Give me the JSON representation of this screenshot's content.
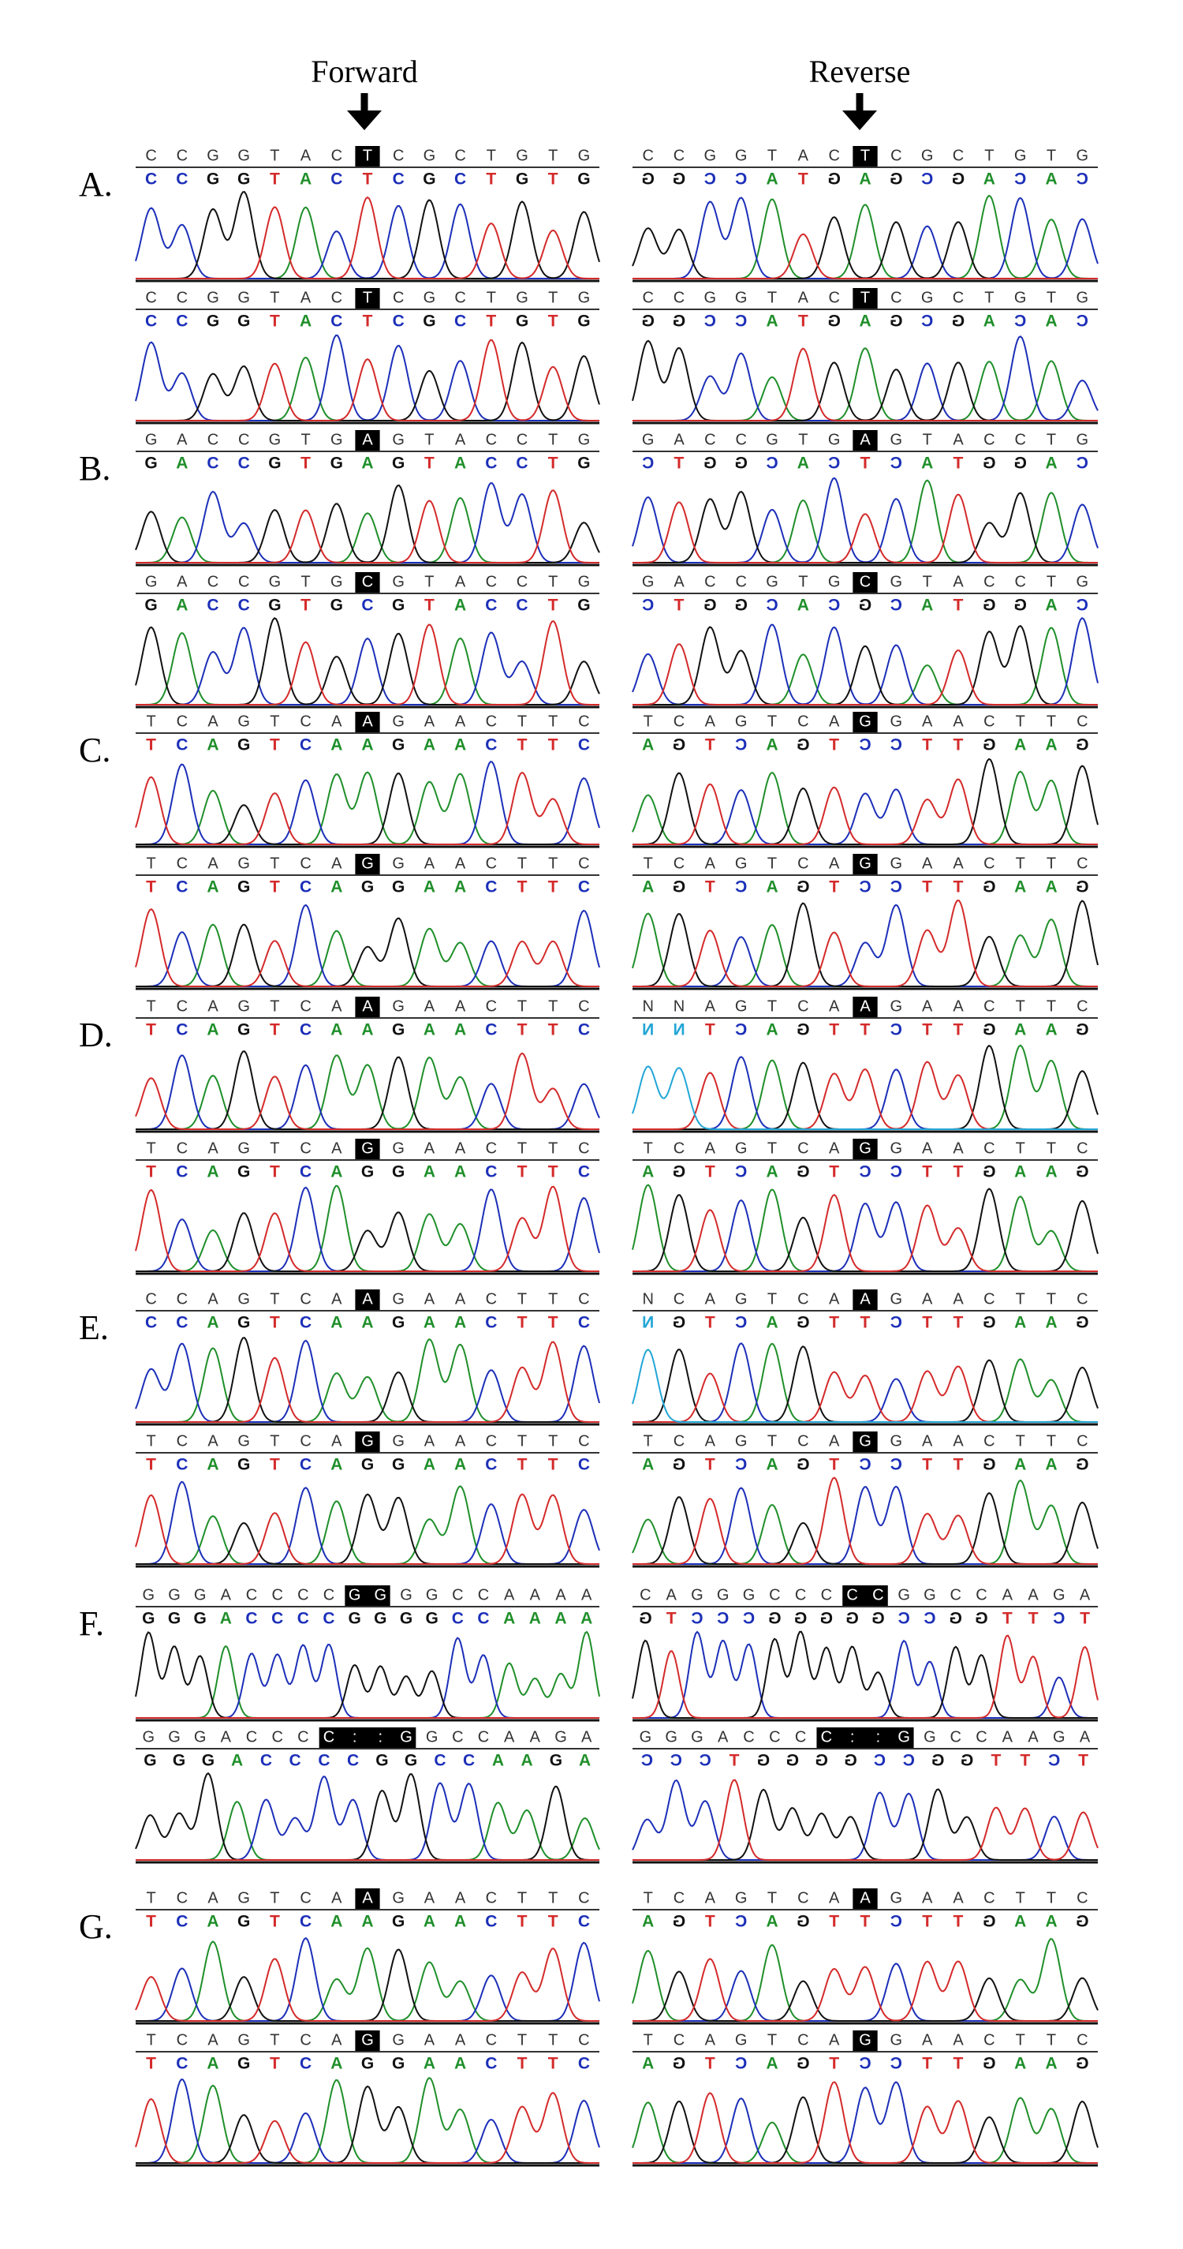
{
  "header": {
    "forward": "Forward",
    "reverse": "Reverse"
  },
  "panels": [
    {
      "label": "A.",
      "rows": [
        {
          "forward": {
            "top": "CCGGTACTCGCTGTG",
            "bottom": "CCGGTACTCGCTGTG",
            "highlight": [
              7,
              7
            ]
          },
          "reverse": {
            "top": "CCGGTACTCGCTGTG",
            "bottom": "GGCCATGAGCGACAC",
            "highlight": [
              7,
              7
            ]
          }
        },
        {
          "forward": {
            "top": "CCGGTACTCGCTGTG",
            "bottom": "CCGGTACTCGCTGTG",
            "highlight": [
              7,
              7
            ]
          },
          "reverse": {
            "top": "CCGGTACTCGCTGTG",
            "bottom": "GGCCATGAGCGACAC",
            "highlight": [
              7,
              7
            ]
          }
        }
      ]
    },
    {
      "label": "B.",
      "rows": [
        {
          "forward": {
            "top": "GACCGTGAGTACCTG",
            "bottom": "GACCGTGAGTACCTG",
            "highlight": [
              7,
              7
            ]
          },
          "reverse": {
            "top": "GACCGTGAGTACCTG",
            "bottom": "CTGGCACTCATGGAC",
            "highlight": [
              7,
              7
            ]
          }
        },
        {
          "forward": {
            "top": "GACCGTGCGTACCTG",
            "bottom": "GACCGTGCGTACCTG",
            "highlight": [
              7,
              7
            ]
          },
          "reverse": {
            "top": "GACCGTGCGTACCTG",
            "bottom": "CTGGCACGCATGGAC",
            "highlight": [
              7,
              7
            ]
          }
        }
      ]
    },
    {
      "label": "C.",
      "rows": [
        {
          "forward": {
            "top": "TCAGTCAAGAACTTC",
            "bottom": "TCAGTCAAGAACTTC",
            "highlight": [
              7,
              7
            ]
          },
          "reverse": {
            "top": "TCAGTCAGGAACTTC",
            "bottom": "AGTCAGTCCTTGAAG",
            "highlight": [
              7,
              7
            ]
          }
        },
        {
          "forward": {
            "top": "TCAGTCAGGAACTTC",
            "bottom": "TCAGTCAGGAACTTC",
            "highlight": [
              7,
              7
            ]
          },
          "reverse": {
            "top": "TCAGTCAGGAACTTC",
            "bottom": "AGTCAGTCCTTGAAG",
            "highlight": [
              7,
              7
            ]
          }
        }
      ]
    },
    {
      "label": "D.",
      "rows": [
        {
          "forward": {
            "top": "TCAGTCAAGAACTTC",
            "bottom": "TCAGTCAAGAACTTC",
            "highlight": [
              7,
              7
            ]
          },
          "reverse": {
            "top": "NNAGTCAAGAACTTC",
            "bottom": "NNTCAGTTCTTGAAG",
            "highlight": [
              7,
              7
            ]
          }
        },
        {
          "forward": {
            "top": "TCAGTCAGGAACTTC",
            "bottom": "TCAGTCAGGAACTTC",
            "highlight": [
              7,
              7
            ]
          },
          "reverse": {
            "top": "TCAGTCAGGAACTTC",
            "bottom": "AGTCAGTCCTTGAAG",
            "highlight": [
              7,
              7
            ]
          }
        }
      ]
    },
    {
      "label": "E.",
      "rows": [
        {
          "forward": {
            "top": "CCAGTCAAGAACTTC",
            "bottom": "CCAGTCAAGAACTTC",
            "highlight": [
              7,
              7
            ]
          },
          "reverse": {
            "top": "NCAGTCAAGAACTTC",
            "bottom": "NGTCAGTTCTTGAAG",
            "highlight": [
              7,
              7
            ]
          }
        },
        {
          "forward": {
            "top": "TCAGTCAGGAACTTC",
            "bottom": "TCAGTCAGGAACTTC",
            "highlight": [
              7,
              7
            ]
          },
          "reverse": {
            "top": "TCAGTCAGGAACTTC",
            "bottom": "AGTCAGTCCTTGAAG",
            "highlight": [
              7,
              7
            ]
          }
        }
      ]
    },
    {
      "label": "F.",
      "rows": [
        {
          "forward": {
            "top": "GGGACCCCGGGGCCAAAA",
            "bottom": "GGGACCCCGGGGCCAAAA",
            "highlight": [
              8,
              9
            ]
          },
          "reverse": {
            "top": "CAGGGCCCCCGGCCAAGA",
            "bottom": "GTCCCGGGGGCCGGTTCT",
            "highlight": [
              8,
              9
            ]
          }
        },
        {
          "forward": {
            "top": "GGGACCCC::GGCCAAGA",
            "bottom": "GGGACCCCGGCCAAGA",
            "highlight": [
              7,
              10
            ]
          },
          "reverse": {
            "top": "GGGACCCC::GGCCAAGA",
            "bottom": "CCCTGGGGCCGGTTCT",
            "highlight": [
              7,
              10
            ]
          }
        }
      ]
    },
    {
      "label": "G.",
      "rows": [
        {
          "forward": {
            "top": "TCAGTCAAGAACTTC",
            "bottom": "TCAGTCAAGAACTTC",
            "highlight": [
              7,
              7
            ]
          },
          "reverse": {
            "top": "TCAGTCAAGAACTTC",
            "bottom": "AGTCAGTTCTTGAAG",
            "highlight": [
              7,
              7
            ]
          }
        },
        {
          "forward": {
            "top": "TCAGTCAGGAACTTC",
            "bottom": "TCAGTCAGGAACTTC",
            "highlight": [
              7,
              7
            ]
          },
          "reverse": {
            "top": "TCAGTCAGGAACTTC",
            "bottom": "AGTCAGTCCTTGAAG",
            "highlight": [
              7,
              7
            ]
          }
        }
      ]
    }
  ]
}
